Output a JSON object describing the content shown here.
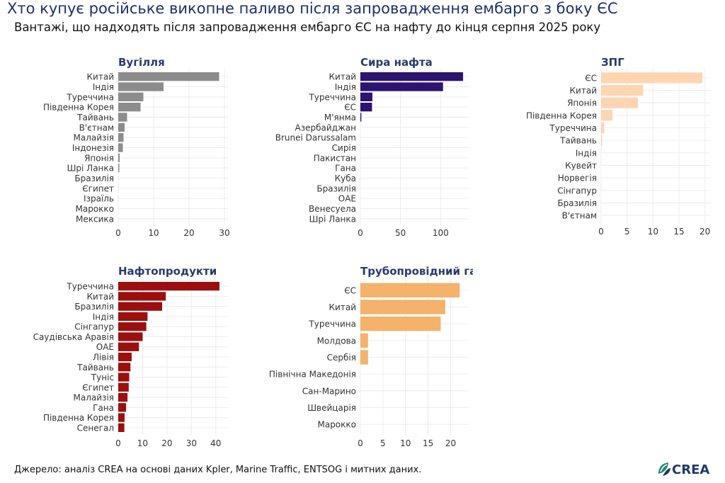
{
  "title": "Хто купує російське викопне паливо після запровадження ембарго з боку ЄС",
  "subtitle": "Вантажі, що надходять після запровадження ембарго ЄС на нафту до кінця серпня 2025 року",
  "source": "Джерело: аналіз CREA на основі даних Kpler, Marine Traffic, ENTSOG і митних даних.",
  "logo": {
    "text": "CREA",
    "icon": "crea-leaf-logo-icon"
  },
  "chart_data": [
    {
      "type": "bar",
      "orientation": "horizontal",
      "title": "Вугілля",
      "color": "#8c8c8c",
      "categories": [
        "Китай",
        "Індія",
        "Туреччина",
        "Південна Корея",
        "Тайвань",
        "В'єтнам",
        "Малайзія",
        "Індонезія",
        "Японія",
        "Шрі Ланка",
        "Бразилія",
        "Єгипет",
        "Ізраїль",
        "Марокко",
        "Мексика"
      ],
      "values": [
        28.5,
        12.8,
        7.1,
        6.3,
        2.5,
        1.8,
        1.5,
        1.3,
        0.4,
        0.3,
        0,
        0,
        0,
        0,
        0
      ],
      "xlim": [
        0,
        31
      ],
      "xticks": [
        0,
        10,
        20,
        30
      ]
    },
    {
      "type": "bar",
      "orientation": "horizontal",
      "title": "Сира нафта",
      "color": "#2c1470",
      "categories": [
        "Китай",
        "Індія",
        "Туреччина",
        "ЄС",
        "М'янма",
        "Азербайджан",
        "Brunei Darussalam",
        "Сирія",
        "Пакистан",
        "Гана",
        "Куба",
        "Бразилія",
        "ОАЕ",
        "Венесуела",
        "Шрі Ланка"
      ],
      "values": [
        128,
        103,
        15,
        14.5,
        1.2,
        0,
        0,
        0,
        0,
        0,
        0,
        0,
        0,
        0,
        0
      ],
      "xlim": [
        0,
        135
      ],
      "xticks": [
        0,
        50,
        100
      ]
    },
    {
      "type": "bar",
      "orientation": "horizontal",
      "title": "ЗПГ",
      "color": "#fdd5b1",
      "categories": [
        "ЄС",
        "Китай",
        "Японія",
        "Південна Корея",
        "Туреччина",
        "Тайвань",
        "Індія",
        "Кувейт",
        "Норвегія",
        "Сінгапур",
        "Бразилія",
        "В'єтнам"
      ],
      "values": [
        19.5,
        8.1,
        7.1,
        2.2,
        0.6,
        0.2,
        0,
        0,
        0,
        0,
        0,
        0
      ],
      "xlim": [
        0,
        21
      ],
      "xticks": [
        0,
        5,
        10,
        15,
        20
      ]
    },
    {
      "type": "bar",
      "orientation": "horizontal",
      "title": "Нафтопродукти",
      "color": "#9c0f0f",
      "categories": [
        "Туреччина",
        "Китай",
        "Бразилія",
        "Індія",
        "Сінгапур",
        "Саудівська Аравія",
        "ОАЕ",
        "Лівія",
        "Тайвань",
        "Туніс",
        "Єгипет",
        "Малайзія",
        "Гана",
        "Південна Корея",
        "Сенегал"
      ],
      "values": [
        41.5,
        19.5,
        18,
        12,
        11.5,
        10,
        8.5,
        5.5,
        5,
        4.5,
        4.3,
        3.8,
        3.2,
        2.6,
        2.5
      ],
      "xlim": [
        0,
        45
      ],
      "xticks": [
        0,
        10,
        20,
        30,
        40
      ]
    },
    {
      "type": "bar",
      "orientation": "horizontal",
      "title": "Трубопровідний газ",
      "color": "#f5b26b",
      "categories": [
        "ЄС",
        "Китай",
        "Туреччина",
        "Молдова",
        "Сербія",
        "Північна Македонія",
        "Сан-Марино",
        "Швейцарія",
        "Марокко"
      ],
      "values": [
        22,
        18.8,
        17.8,
        1.7,
        1.7,
        0,
        0,
        0,
        0
      ],
      "xlim": [
        0,
        24
      ],
      "xticks": [
        0,
        5,
        10,
        15,
        20
      ]
    }
  ]
}
